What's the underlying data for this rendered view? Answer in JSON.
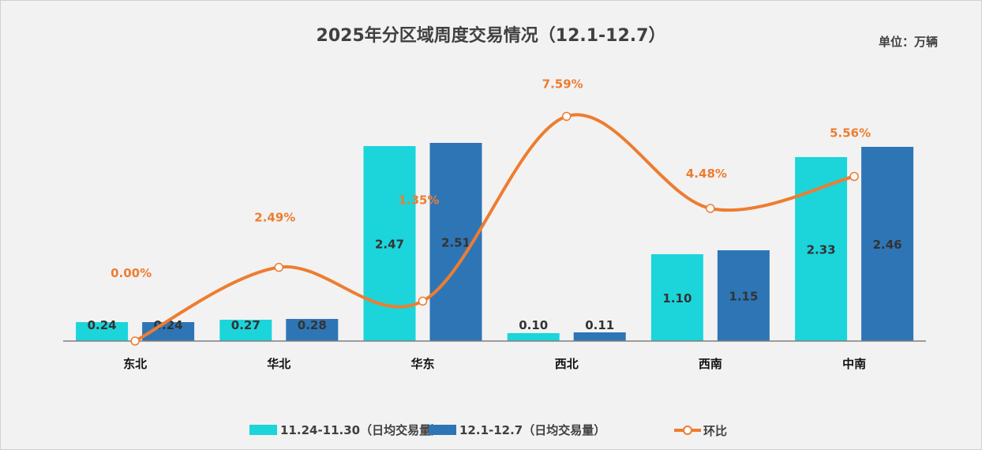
{
  "chart_data": {
    "type": "bar",
    "title": "2025年分区域周度交易情况（12.1-12.7）",
    "unit": "单位：万辆",
    "categories": [
      "东北",
      "华北",
      "华东",
      "西北",
      "西南",
      "中南"
    ],
    "series": [
      {
        "name": "11.24-11.30（日均交易量）",
        "type": "bar",
        "color": "#1bd5db",
        "values": [
          0.24,
          0.27,
          2.47,
          0.1,
          1.1,
          2.33
        ],
        "labels": [
          "0.24",
          "0.27",
          "2.47",
          "0.10",
          "1.10",
          "2.33"
        ]
      },
      {
        "name": "12.1-12.7（日均交易量）",
        "type": "bar",
        "color": "#2e75b6",
        "values": [
          0.24,
          0.28,
          2.51,
          0.11,
          1.15,
          2.46
        ],
        "labels": [
          "0.24",
          "0.28",
          "2.51",
          "0.11",
          "1.15",
          "2.46"
        ]
      },
      {
        "name": "环比",
        "type": "line",
        "color": "#ed7d31",
        "axis": "secondary",
        "smooth": true,
        "values": [
          0.0,
          2.49,
          1.35,
          7.59,
          4.48,
          5.56
        ],
        "labels": [
          "0.00%",
          "2.49%",
          "1.35%",
          "7.59%",
          "4.48%",
          "5.56%"
        ]
      }
    ],
    "ylim": [
      0,
      3
    ],
    "y2lim": [
      0,
      8
    ],
    "grid": false,
    "legend": "bottom"
  }
}
